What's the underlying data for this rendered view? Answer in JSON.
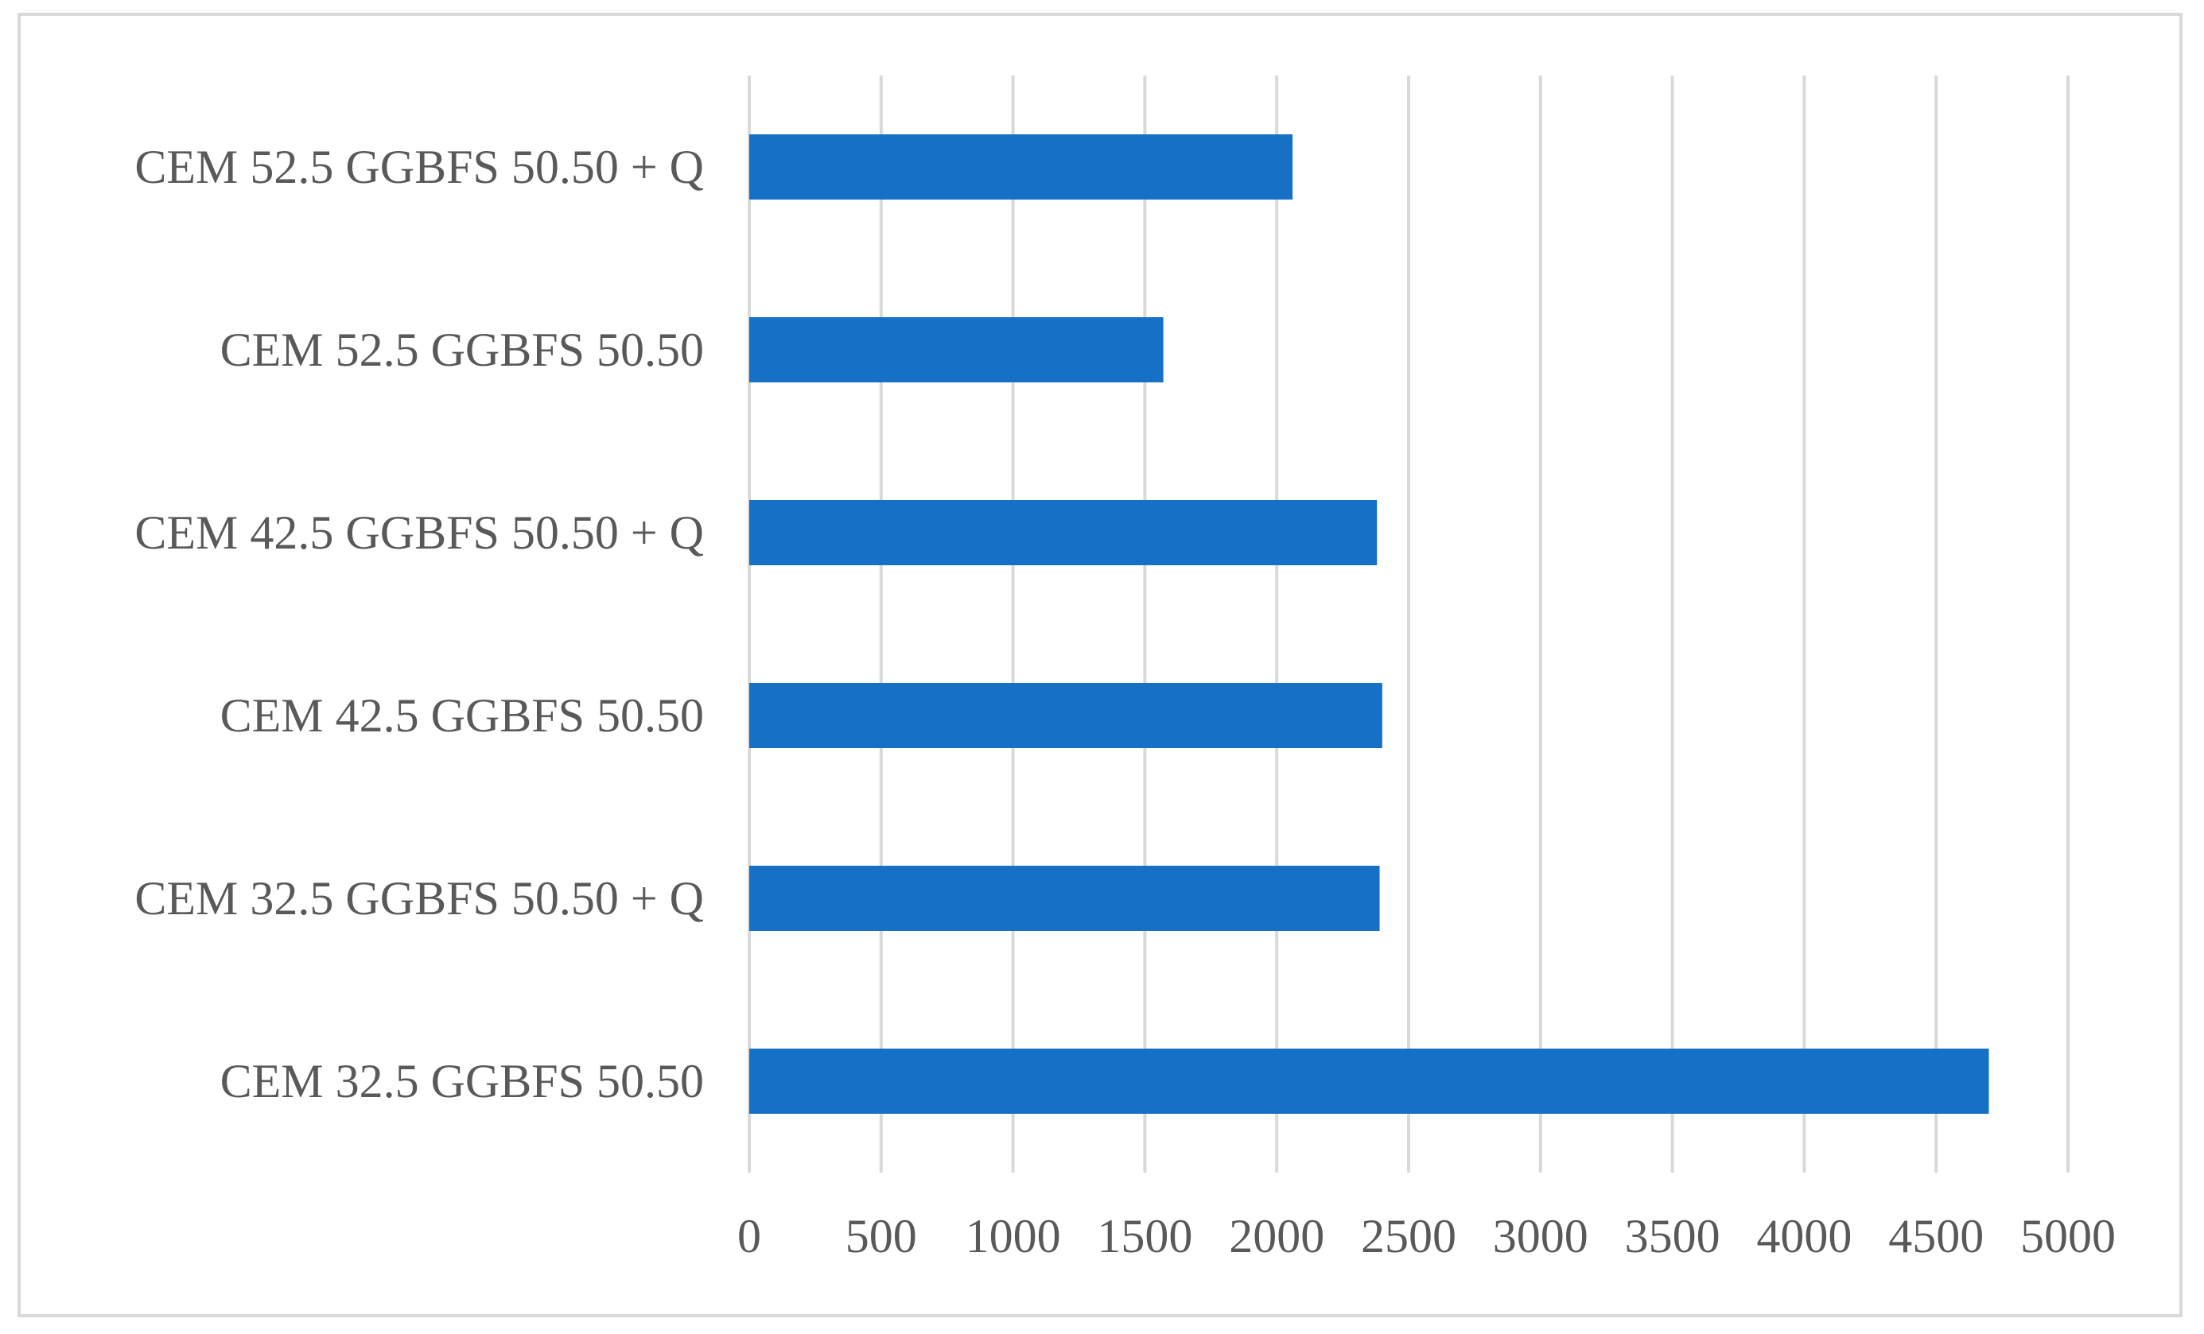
{
  "chart_data": {
    "type": "bar",
    "orientation": "horizontal",
    "categories": [
      "CEM 52.5 GGBFS 50.50 + Q",
      "CEM 52.5 GGBFS 50.50",
      "CEM 42.5 GGBFS 50.50 + Q",
      "CEM 42.5 GGBFS 50.50",
      "CEM 32.5 GGBFS 50.50 + Q",
      "CEM 32.5 GGBFS 50.50"
    ],
    "values": [
      2060,
      1570,
      2380,
      2400,
      2390,
      4700
    ],
    "title": "",
    "xlabel": "",
    "ylabel": "",
    "xlim": [
      0,
      5000
    ],
    "x_ticks": [
      "0",
      "500",
      "1000",
      "1500",
      "2000",
      "2500",
      "3000",
      "3500",
      "4000",
      "4500",
      "5000"
    ],
    "grid": "vertical",
    "legend": "none",
    "bar_color": "#1570c6"
  }
}
